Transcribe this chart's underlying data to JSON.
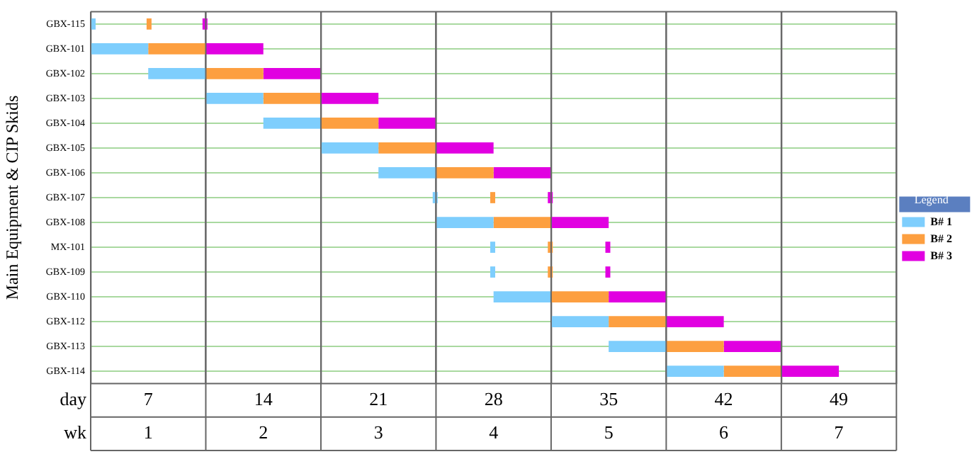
{
  "chart_data": {
    "type": "bar",
    "orientation": "horizontal",
    "ylabel": "Main Equipment & CIP Skids",
    "xlabel": "day",
    "x2label": "wk",
    "legend_title": "Legend",
    "legend": "right",
    "grid": true,
    "categories": [
      "GBX-115",
      "GBX-101",
      "GBX-102",
      "GBX-103",
      "GBX-104",
      "GBX-105",
      "GBX-106",
      "GBX-107",
      "GBX-108",
      "MX-101",
      "GBX-109",
      "GBX-110",
      "GBX-112",
      "GBX-113",
      "GBX-114"
    ],
    "xlim": [
      3.5,
      52.5
    ],
    "xticks": [
      {
        "value": 3.5,
        "label": null
      },
      7,
      {
        "value": 10.5,
        "label": null
      },
      14,
      {
        "value": 17.5,
        "label": null
      },
      21,
      {
        "value": 24.5,
        "label": null
      },
      28,
      {
        "value": 31.5,
        "label": null
      },
      35,
      {
        "value": 38.5,
        "label": null
      },
      42,
      {
        "value": 45.5,
        "label": null
      },
      49,
      {
        "value": 52.5,
        "label": null
      }
    ],
    "x2lim": [
      0.5,
      7.5
    ],
    "x2ticks": [
      1,
      2,
      3,
      4,
      5,
      6,
      7
    ],
    "series": [
      {
        "name": "B# 1",
        "color": "#7ecefd",
        "base": [
          3.5,
          3.5,
          7,
          10.5,
          14,
          17.5,
          21,
          24.3,
          24.5,
          27.8,
          27.8,
          28,
          31.5,
          35,
          38.5
        ],
        "values": [
          0.3,
          3.5,
          3.5,
          3.5,
          3.5,
          3.5,
          3.5,
          0.3,
          3.5,
          0.3,
          0.3,
          3.5,
          3.5,
          3.5,
          3.5
        ]
      },
      {
        "name": "B# 2",
        "color": "#fd9f40",
        "base": [
          6.9,
          7,
          10.5,
          14,
          17.5,
          21,
          24.5,
          27.8,
          28,
          31.3,
          31.3,
          31.5,
          35,
          38.5,
          42
        ],
        "values": [
          0.3,
          3.5,
          3.5,
          3.5,
          3.5,
          3.5,
          3.5,
          0.3,
          3.5,
          0.3,
          0.3,
          3.5,
          3.5,
          3.5,
          3.5
        ]
      },
      {
        "name": "B# 3",
        "color": "#e100e1",
        "base": [
          10.3,
          10.5,
          14,
          17.5,
          21,
          24.5,
          28,
          31.3,
          31.5,
          34.8,
          34.8,
          35,
          38.5,
          42,
          45.5
        ],
        "values": [
          0.3,
          3.5,
          3.5,
          3.5,
          3.5,
          3.5,
          3.5,
          0.3,
          3.5,
          0.3,
          0.3,
          3.5,
          3.5,
          3.5,
          3.5
        ]
      }
    ]
  }
}
